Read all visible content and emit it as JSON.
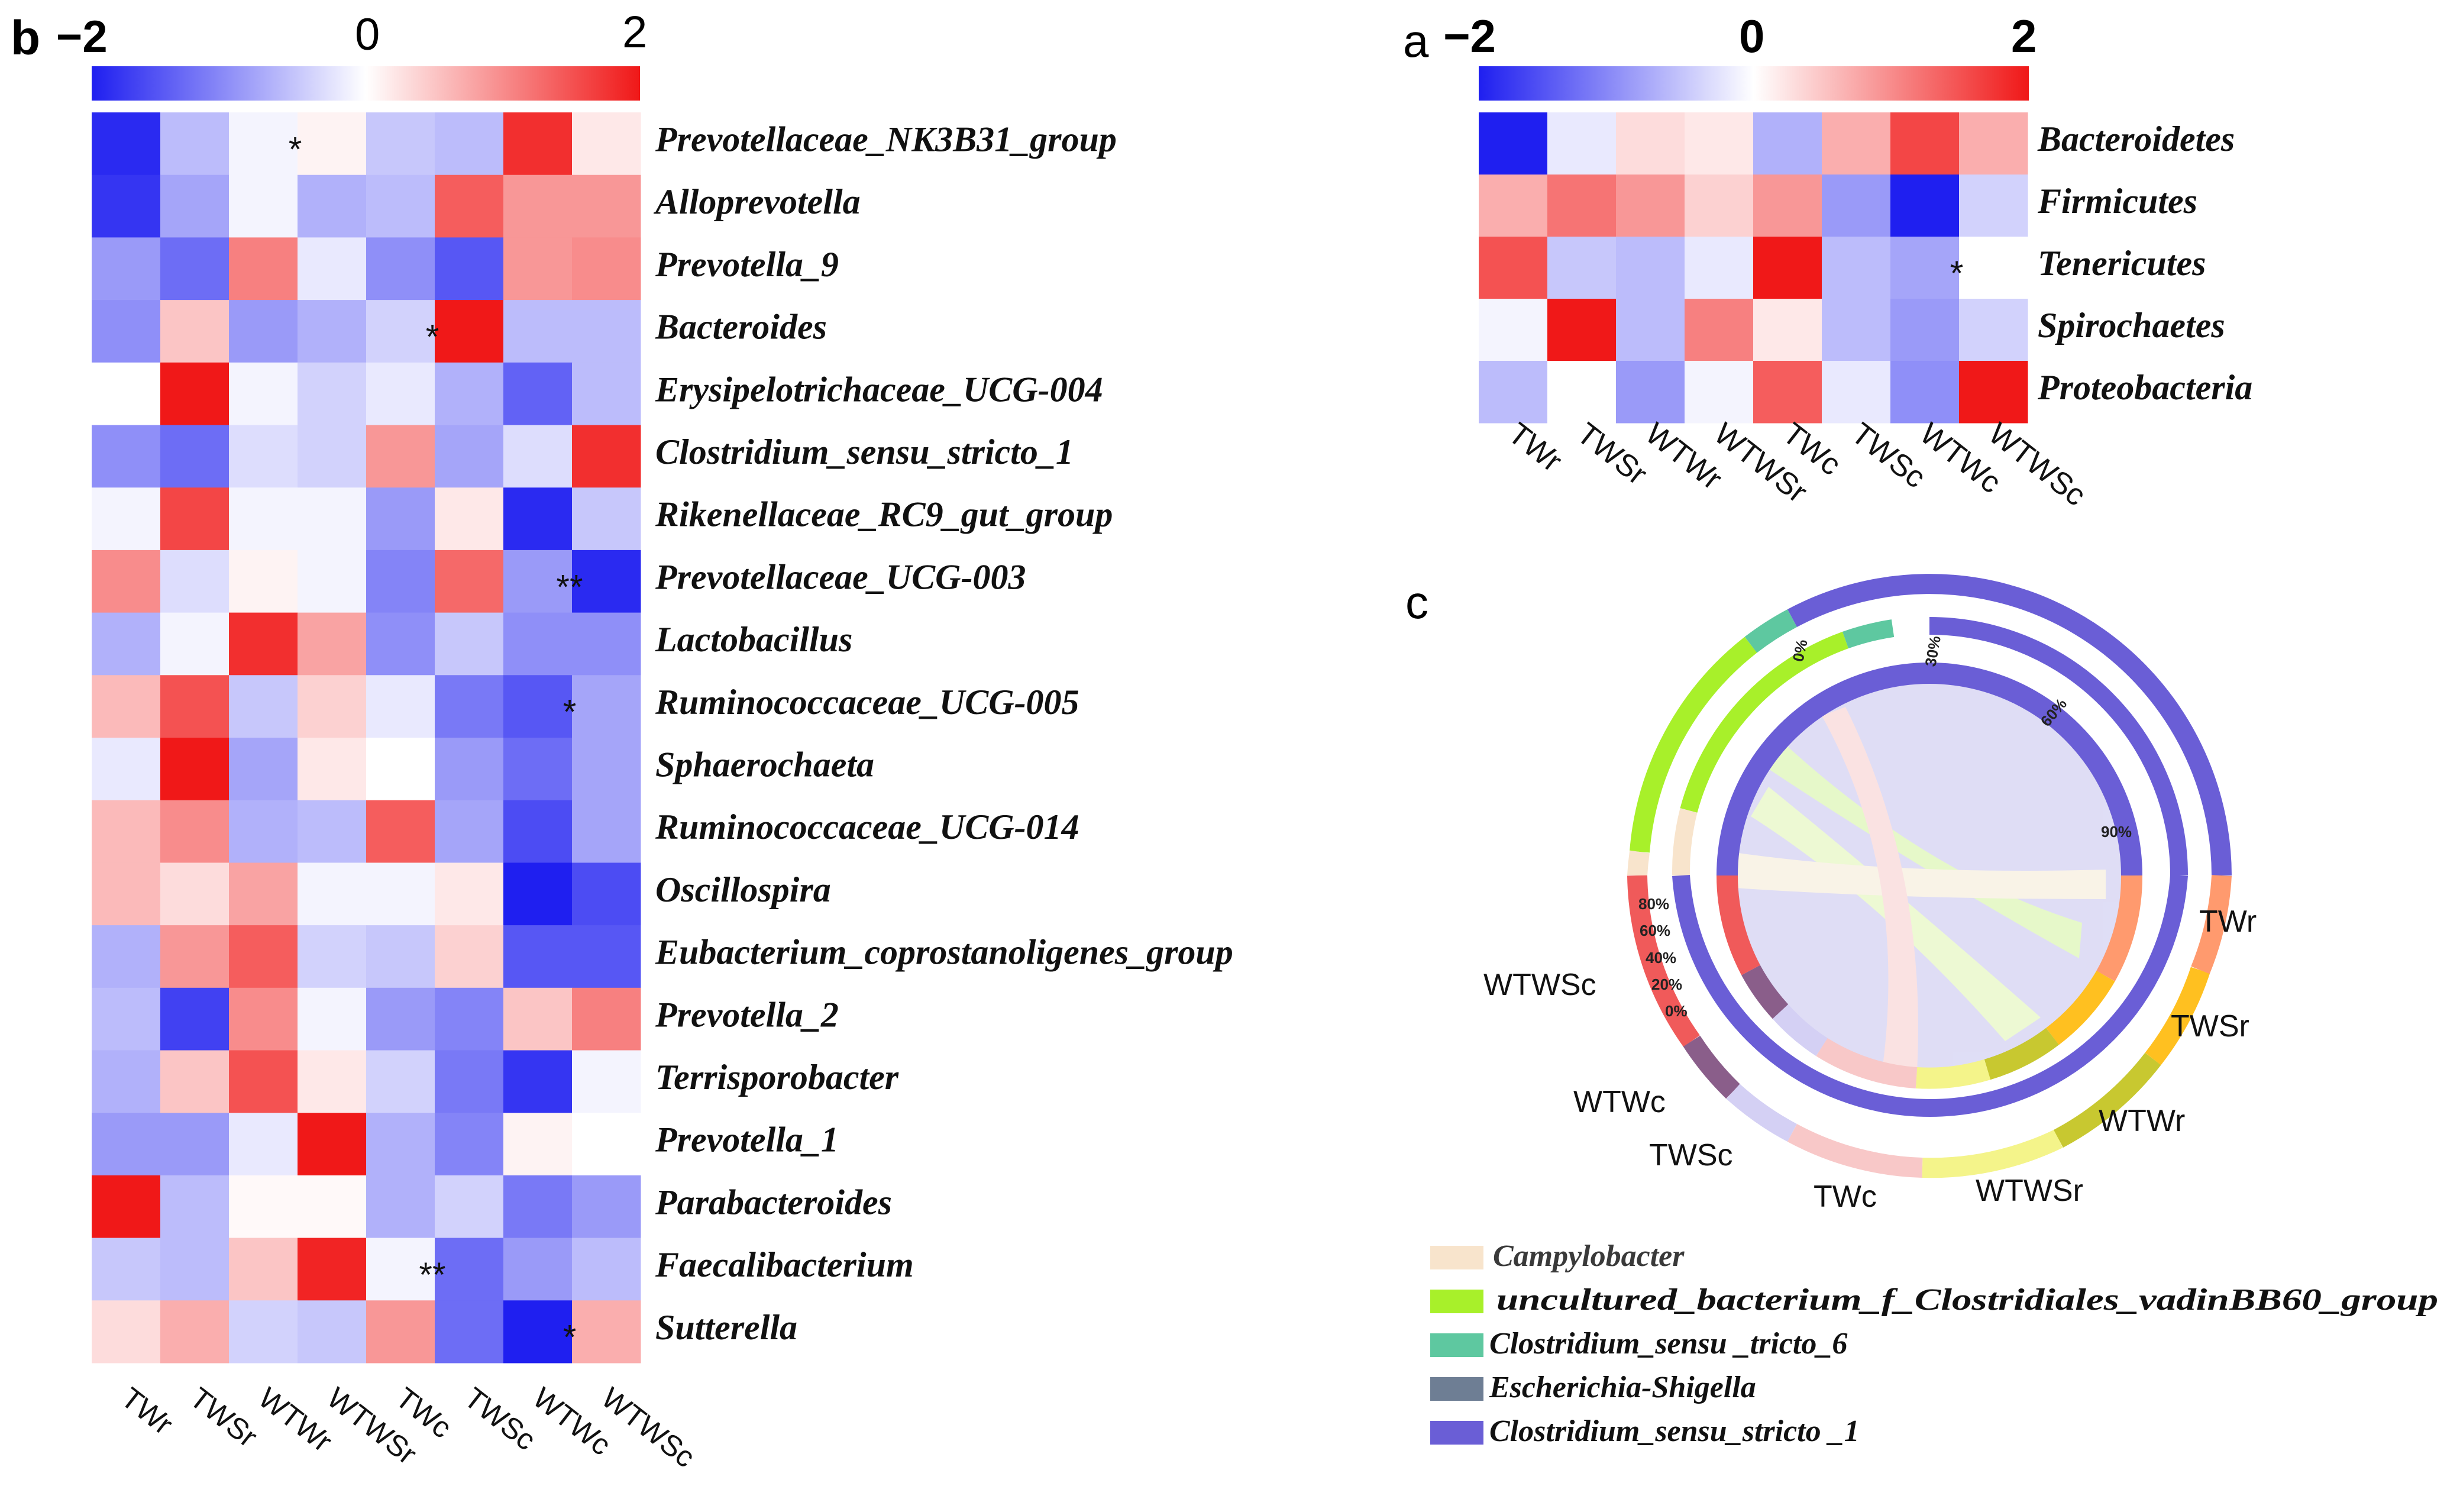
{
  "panel_b": {
    "label": "b",
    "scale": {
      "min_label": "−2",
      "mid_label": "0",
      "max_label": "2"
    }
  },
  "panel_a": {
    "label": "a",
    "scale": {
      "min_label": "−2",
      "mid_label": "0",
      "max_label": "2"
    }
  },
  "panel_c": {
    "label": "c",
    "samples": [
      "TWr",
      "TWSr",
      "WTWr",
      "WTWSr",
      "TWc",
      "TWSc",
      "WTWc",
      "WTWSc"
    ],
    "tick_labels_upper": [
      "0%",
      "30%",
      "60%",
      "90%"
    ],
    "tick_labels_left": [
      "80%",
      "60%",
      "40%",
      "20%",
      "0%"
    ],
    "legend": [
      {
        "label": "Campylobacter",
        "color": "#F8E4CC"
      },
      {
        "label": "uncultured_bacterium_f_Clostridiales_vadinBB60_group",
        "color": "#A8F02A"
      },
      {
        "label": "Clostridium_sensu _tricto_6",
        "color": "#5EC8A0"
      },
      {
        "label": "Escherichia-Shigella",
        "color": "#6E7E94"
      },
      {
        "label": "Clostridium_sensu_stricto _1",
        "color": "#6A5ED6"
      }
    ]
  },
  "chart_data": [
    {
      "type": "heatmap",
      "panel": "b",
      "title": "",
      "color_scale": {
        "min": -2,
        "mid": 0,
        "max": 2,
        "low_color": "#1F1FF0",
        "mid_color": "#FFFFFF",
        "high_color": "#F01818"
      },
      "columns": [
        "TWr",
        "TWSr",
        "WTWr",
        "WTWSr",
        "TWc",
        "TWSc",
        "WTWc",
        "WTWSc"
      ],
      "rows": [
        "Prevotellaceae_NK3B31_group",
        "Alloprevotella",
        "Prevotella_9",
        "Bacteroides",
        "Erysipelotrichaceae_UCG-004",
        "Clostridium_sensu_stricto_1",
        "Rikenellaceae_RC9_gut_group",
        "Prevotellaceae_UCG-003",
        "Lactobacillus",
        "Ruminococcaceae_UCG-005",
        "Sphaerochaeta",
        "Ruminococcaceae_UCG-014",
        "Oscillospira",
        "Eubacterium_coprostanoligenes_group",
        "Prevotella_2",
        "Terrisporobacter",
        "Prevotella_1",
        "Parabacteroides",
        "Faecalibacterium",
        "Sutterella"
      ],
      "values": [
        [
          -1.9,
          -0.6,
          -0.1,
          0.1,
          -0.5,
          -0.6,
          1.8,
          0.2
        ],
        [
          -1.8,
          -0.8,
          -0.1,
          -0.7,
          -0.6,
          1.4,
          0.9,
          0.9
        ],
        [
          -0.9,
          -1.3,
          1.1,
          -0.2,
          -1.0,
          -1.5,
          0.9,
          1.0
        ],
        [
          -1.0,
          0.5,
          -0.9,
          -0.7,
          -0.4,
          2.0,
          -0.6,
          -0.6
        ],
        [
          0.0,
          2.0,
          -0.1,
          -0.4,
          -0.2,
          -0.7,
          -1.4,
          -0.6
        ],
        [
          -1.0,
          -1.3,
          -0.3,
          -0.4,
          0.9,
          -0.8,
          -0.3,
          1.8
        ],
        [
          -0.1,
          1.6,
          -0.1,
          -0.1,
          -0.9,
          0.2,
          -1.9,
          -0.5
        ],
        [
          1.0,
          -0.3,
          0.1,
          -0.1,
          -1.1,
          1.3,
          -0.9,
          -1.9
        ],
        [
          -0.7,
          -0.1,
          1.8,
          0.8,
          -1.0,
          -0.5,
          -1.0,
          -1.0
        ],
        [
          0.6,
          1.5,
          -0.5,
          0.4,
          -0.2,
          -1.2,
          -1.5,
          -0.8
        ],
        [
          -0.2,
          2.0,
          -0.8,
          0.2,
          0.0,
          -0.9,
          -1.3,
          -0.8
        ],
        [
          0.6,
          1.0,
          -0.7,
          -0.6,
          1.4,
          -0.8,
          -1.6,
          -0.8
        ],
        [
          0.6,
          0.3,
          0.8,
          -0.1,
          -0.1,
          0.2,
          -2.0,
          -1.6
        ],
        [
          -0.7,
          0.9,
          1.4,
          -0.4,
          -0.5,
          0.4,
          -1.5,
          -1.5
        ],
        [
          -0.6,
          -1.7,
          1.0,
          -0.1,
          -0.9,
          -1.1,
          0.5,
          1.1
        ],
        [
          -0.7,
          0.5,
          1.5,
          0.2,
          -0.4,
          -1.2,
          -1.8,
          -0.1
        ],
        [
          -0.9,
          -0.9,
          -0.2,
          2.0,
          -0.7,
          -1.1,
          0.1,
          0.0
        ],
        [
          2.0,
          -0.6,
          0.05,
          0.05,
          -0.7,
          -0.4,
          -1.2,
          -0.9
        ],
        [
          -0.5,
          -0.6,
          0.5,
          1.9,
          -0.1,
          -1.3,
          -0.9,
          -0.6
        ],
        [
          0.3,
          0.7,
          -0.4,
          -0.5,
          0.9,
          -1.3,
          -2.0,
          0.7
        ]
      ],
      "annotations": [
        {
          "row": "Prevotellaceae_NK3B31_group",
          "column": "WTWr",
          "text": "*"
        },
        {
          "row": "Bacteroides",
          "column": "TWc",
          "text": "*"
        },
        {
          "row": "Prevotellaceae_UCG-003",
          "column": "WTWc",
          "text": "**"
        },
        {
          "row": "Ruminococcaceae_UCG-005",
          "column": "WTWc",
          "text": "*"
        },
        {
          "row": "Faecalibacterium",
          "column": "TWc",
          "text": "**"
        },
        {
          "row": "Sutterella",
          "column": "WTWc",
          "text": "*"
        }
      ]
    },
    {
      "type": "heatmap",
      "panel": "a",
      "title": "",
      "color_scale": {
        "min": -2,
        "mid": 0,
        "max": 2,
        "low_color": "#1F1FF0",
        "mid_color": "#FFFFFF",
        "high_color": "#F01818"
      },
      "columns": [
        "TWr",
        "TWSr",
        "WTWr",
        "WTWSr",
        "TWc",
        "TWSc",
        "WTWc",
        "WTWSc"
      ],
      "rows": [
        "Bacteroidetes",
        "Firmicutes",
        "Tenericutes",
        "Spirochaetes",
        "Proteobacteria"
      ],
      "values": [
        [
          -2.0,
          -0.2,
          0.3,
          0.2,
          -0.7,
          0.7,
          1.6,
          0.7
        ],
        [
          0.7,
          1.2,
          0.9,
          0.4,
          0.9,
          -0.9,
          -2.0,
          -0.4
        ],
        [
          1.5,
          -0.5,
          -0.6,
          -0.2,
          2.0,
          -0.6,
          -0.8,
          0.0
        ],
        [
          -0.1,
          2.0,
          -0.6,
          1.1,
          0.2,
          -0.6,
          -0.9,
          -0.4
        ],
        [
          -0.6,
          0.0,
          -0.9,
          -0.1,
          1.4,
          -0.2,
          -1.0,
          2.0
        ]
      ],
      "annotations": [
        {
          "row": "Tenericutes",
          "column": "WTWc",
          "text": "*"
        }
      ]
    }
  ]
}
